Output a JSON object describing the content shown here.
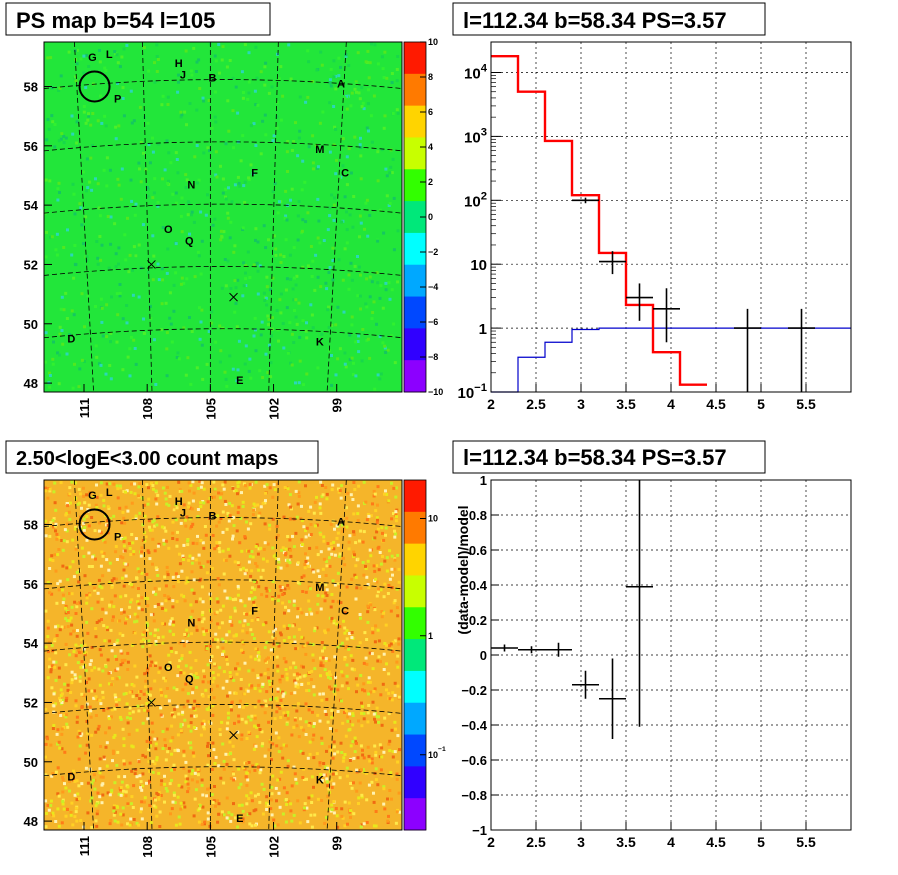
{
  "colors": {
    "frame": "#000000",
    "grid": "#000000",
    "model_hist": "#ff0000",
    "psf_line": "#0000cc",
    "data_points": "#000000",
    "map_background_ps": "#22e63a",
    "map_background_counts": "#f5b52a"
  },
  "chart_data": [
    {
      "id": "ps-map",
      "type": "heatmap",
      "title": "PS map b=54 l=105",
      "xlabel": "",
      "ylabel": "",
      "x_ticks": [
        "111",
        "108",
        "105",
        "102",
        "99"
      ],
      "y_ticks": [
        "58",
        "56",
        "54",
        "52",
        "50",
        "48"
      ],
      "colorbar": {
        "scale": "linear",
        "range": [
          -10,
          10
        ],
        "ticks": [
          "10",
          "8",
          "6",
          "4",
          "2",
          "0",
          "−2",
          "−4",
          "−6",
          "−8",
          "−10"
        ]
      },
      "sources": [
        {
          "label": "G",
          "l": 110.6,
          "b": 59.0
        },
        {
          "label": "L",
          "l": 109.8,
          "b": 59.1
        },
        {
          "label": "H",
          "l": 106.5,
          "b": 58.8
        },
        {
          "label": "J",
          "l": 106.3,
          "b": 58.4
        },
        {
          "label": "B",
          "l": 104.9,
          "b": 58.3
        },
        {
          "label": "A",
          "l": 98.8,
          "b": 58.1
        },
        {
          "label": "P",
          "l": 109.4,
          "b": 57.6
        },
        {
          "label": "M",
          "l": 99.8,
          "b": 55.9
        },
        {
          "label": "C",
          "l": 98.6,
          "b": 55.1
        },
        {
          "label": "F",
          "l": 102.9,
          "b": 55.1
        },
        {
          "label": "N",
          "l": 105.9,
          "b": 54.7
        },
        {
          "label": "O",
          "l": 107.0,
          "b": 53.2
        },
        {
          "label": "Q",
          "l": 106.0,
          "b": 52.8
        },
        {
          "label": "D",
          "l": 111.6,
          "b": 49.5
        },
        {
          "label": "K",
          "l": 99.8,
          "b": 49.4
        },
        {
          "label": "E",
          "l": 103.6,
          "b": 48.1
        }
      ],
      "circle_center": {
        "l": 110.5,
        "b": 58.0
      },
      "crosses": [
        {
          "l": 107.8,
          "b": 52.0
        },
        {
          "l": 103.9,
          "b": 50.9
        }
      ]
    },
    {
      "id": "spectrum",
      "type": "line",
      "title": "l=112.34 b=58.34 PS=3.57",
      "xlabel": "",
      "ylabel": "",
      "xlim": [
        2,
        6
      ],
      "ylim": [
        0.1,
        30000
      ],
      "yscale": "log",
      "x_ticks": [
        "2",
        "2.5",
        "3",
        "3.5",
        "4",
        "4.5",
        "5",
        "5.5"
      ],
      "y_ticks": [
        "10^-1",
        "1",
        "10",
        "10^2",
        "10^3",
        "10^4"
      ],
      "grid": true,
      "series": [
        {
          "style": "step",
          "bin_edges": [
            2.0,
            2.3,
            2.6,
            2.9,
            3.2,
            3.5,
            3.8,
            4.1,
            4.4
          ],
          "values": [
            18000,
            5000,
            850,
            120,
            15,
            2.3,
            0.42,
            0.13
          ]
        },
        {
          "style": "step",
          "bin_edges": [
            2.0,
            2.3,
            2.6,
            2.9,
            3.2,
            3.5,
            3.8,
            4.1,
            4.4,
            4.7,
            5.0,
            5.3,
            5.6,
            6.0
          ],
          "values": [
            0.08,
            0.35,
            0.6,
            0.95,
            1.0,
            1.0,
            1.0,
            1.0,
            1.0,
            1.0,
            1.0,
            1.0,
            1.0
          ]
        },
        {
          "style": "errorbars",
          "points": [
            {
              "x": 3.05,
              "y": 100,
              "xerr": 0.15,
              "ylo": 90,
              "yhi": 110
            },
            {
              "x": 3.35,
              "y": 11,
              "xerr": 0.15,
              "ylo": 7,
              "yhi": 16
            },
            {
              "x": 3.65,
              "y": 3,
              "xerr": 0.15,
              "ylo": 1.3,
              "yhi": 5
            },
            {
              "x": 3.95,
              "y": 2,
              "xerr": 0.15,
              "ylo": 0.6,
              "yhi": 4.2
            },
            {
              "x": 4.85,
              "y": 1,
              "xerr": 0.15,
              "ylo": 0.1,
              "yhi": 2
            },
            {
              "x": 5.45,
              "y": 1,
              "xerr": 0.15,
              "ylo": 0.1,
              "yhi": 2
            }
          ]
        }
      ]
    },
    {
      "id": "count-map",
      "type": "heatmap",
      "title": "2.50<logE<3.00 count maps",
      "xlabel": "",
      "ylabel": "",
      "x_ticks": [
        "111",
        "108",
        "105",
        "102",
        "99"
      ],
      "y_ticks": [
        "58",
        "56",
        "54",
        "52",
        "50",
        "48"
      ],
      "colorbar": {
        "scale": "log",
        "ticks": [
          "10",
          "1",
          "10^-1"
        ]
      },
      "sources_same_as": "ps-map"
    },
    {
      "id": "residual",
      "type": "scatter",
      "title": "l=112.34 b=58.34 PS=3.57",
      "xlabel": "",
      "ylabel": "(data-model)/model",
      "xlim": [
        2,
        6
      ],
      "ylim": [
        -1,
        1
      ],
      "x_ticks": [
        "2",
        "2.5",
        "3",
        "3.5",
        "4",
        "4.5",
        "5",
        "5.5"
      ],
      "y_ticks": [
        "1",
        "0.8",
        "0.6",
        "0.4",
        "0.2",
        "0",
        "−0.2",
        "−0.4",
        "−0.6",
        "−0.8",
        "−1"
      ],
      "grid": true,
      "points": [
        {
          "x": 2.15,
          "y": 0.04,
          "xerr": 0.15,
          "ylo": 0.02,
          "yhi": 0.06
        },
        {
          "x": 2.45,
          "y": 0.03,
          "xerr": 0.15,
          "ylo": 0.01,
          "yhi": 0.05
        },
        {
          "x": 2.75,
          "y": 0.03,
          "xerr": 0.15,
          "ylo": -0.01,
          "yhi": 0.07
        },
        {
          "x": 3.05,
          "y": -0.17,
          "xerr": 0.15,
          "ylo": -0.25,
          "yhi": -0.09
        },
        {
          "x": 3.35,
          "y": -0.25,
          "xerr": 0.15,
          "ylo": -0.48,
          "yhi": -0.02
        },
        {
          "x": 3.65,
          "y": 0.39,
          "xerr": 0.15,
          "ylo": -0.41,
          "yhi": 1.0
        }
      ]
    }
  ]
}
